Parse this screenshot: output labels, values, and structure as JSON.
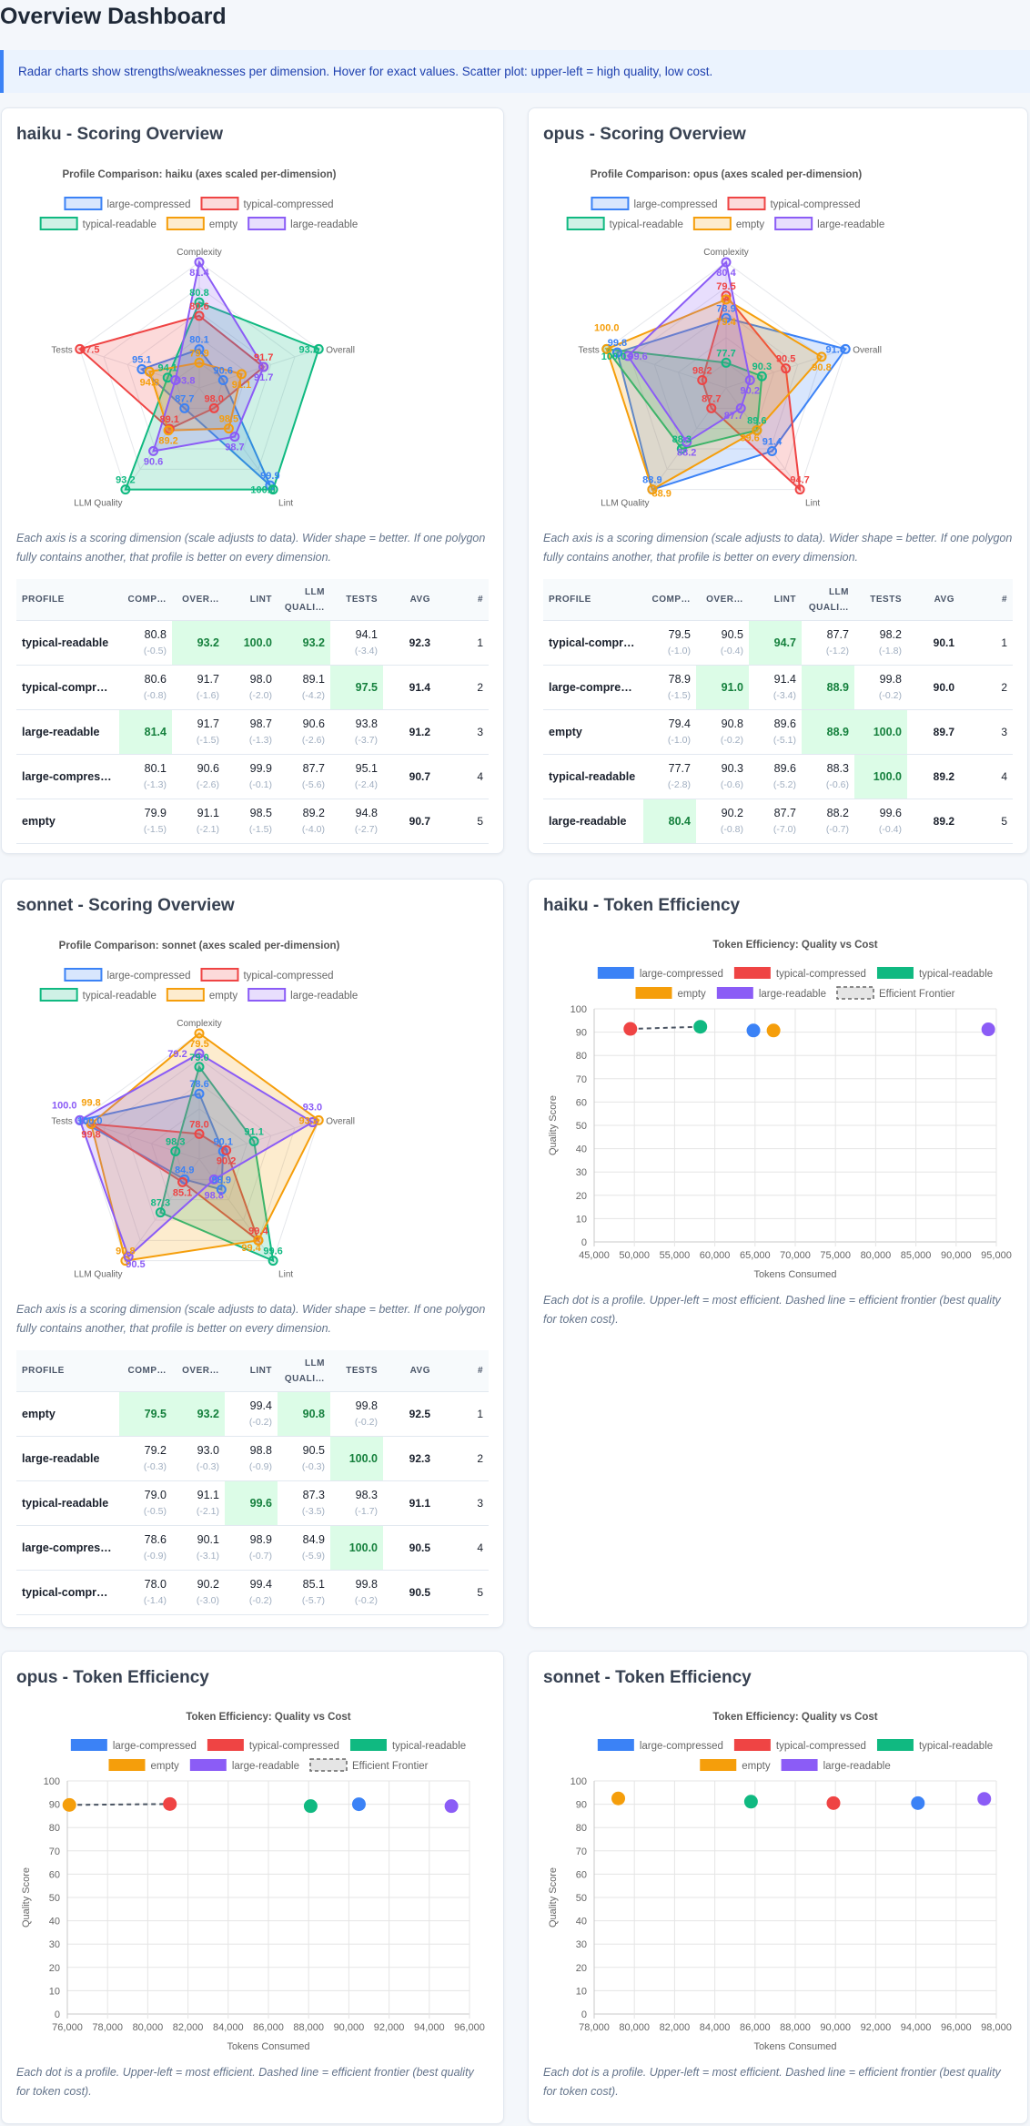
{
  "page": {
    "title": "Overview Dashboard",
    "banner": "Radar charts show strengths/weaknesses per dimension. Hover for exact values. Scatter plot: upper-left = high quality, low cost."
  },
  "colors": {
    "large-compressed": "#3b82f6",
    "typical-compressed": "#ef4444",
    "typical-readable": "#10b981",
    "empty": "#f59e0b",
    "large-readable": "#8b5cf6",
    "best_cell_bg": "#dcfce7",
    "best_cell_text": "#15803d",
    "accent": "#3b82f6"
  },
  "radar_cards": [
    {
      "title": "haiku - Scoring Overview",
      "caption": "Each axis is a scoring dimension (scale adjusts to data). Wider shape = better. If one polygon fully contains another, that profile is better on every dimension.",
      "table": {
        "headers": [
          "Profile",
          "Comp…",
          "Over…",
          "Lint",
          "LLM Quali…",
          "Tests",
          "Avg",
          "#"
        ],
        "rows": [
          {
            "profile": "typical-readable",
            "values": [
              "80.8",
              "93.2",
              "100.0",
              "93.2",
              "94.1"
            ],
            "deltas": [
              "(-0.5)",
              null,
              null,
              null,
              "(-3.4)"
            ],
            "avg": "92.3",
            "rank": "1"
          },
          {
            "profile": "typical-compressed",
            "values": [
              "80.6",
              "91.7",
              "98.0",
              "89.1",
              "97.5"
            ],
            "deltas": [
              "(-0.8)",
              "(-1.6)",
              "(-2.0)",
              "(-4.2)",
              null
            ],
            "avg": "91.4",
            "rank": "2"
          },
          {
            "profile": "large-readable",
            "values": [
              "81.4",
              "91.7",
              "98.7",
              "90.6",
              "93.8"
            ],
            "deltas": [
              null,
              "(-1.5)",
              "(-1.3)",
              "(-2.6)",
              "(-3.7)"
            ],
            "avg": "91.2",
            "rank": "3"
          },
          {
            "profile": "large-compressed",
            "values": [
              "80.1",
              "90.6",
              "99.9",
              "87.7",
              "95.1"
            ],
            "deltas": [
              "(-1.3)",
              "(-2.6)",
              "(-0.1)",
              "(-5.6)",
              "(-2.4)"
            ],
            "avg": "90.7",
            "rank": "4"
          },
          {
            "profile": "empty",
            "values": [
              "79.9",
              "91.1",
              "98.5",
              "89.2",
              "94.8"
            ],
            "deltas": [
              "(-1.5)",
              "(-2.1)",
              "(-1.5)",
              "(-4.0)",
              "(-2.7)"
            ],
            "avg": "90.7",
            "rank": "5"
          }
        ]
      }
    },
    {
      "title": "opus - Scoring Overview",
      "caption": "Each axis is a scoring dimension (scale adjusts to data). Wider shape = better. If one polygon fully contains another, that profile is better on every dimension.",
      "table": {
        "headers": [
          "Profile",
          "Comp…",
          "Over…",
          "Lint",
          "LLM Quali…",
          "Tests",
          "Avg",
          "#"
        ],
        "rows": [
          {
            "profile": "typical-compressed",
            "values": [
              "79.5",
              "90.5",
              "94.7",
              "87.7",
              "98.2"
            ],
            "deltas": [
              "(-1.0)",
              "(-0.4)",
              null,
              "(-1.2)",
              "(-1.8)"
            ],
            "avg": "90.1",
            "rank": "1"
          },
          {
            "profile": "large-compressed",
            "values": [
              "78.9",
              "91.0",
              "91.4",
              "88.9",
              "99.8"
            ],
            "deltas": [
              "(-1.5)",
              null,
              "(-3.4)",
              null,
              "(-0.2)"
            ],
            "avg": "90.0",
            "rank": "2"
          },
          {
            "profile": "empty",
            "values": [
              "79.4",
              "90.8",
              "89.6",
              "88.9",
              "100.0"
            ],
            "deltas": [
              "(-1.0)",
              "(-0.2)",
              "(-5.1)",
              null,
              null
            ],
            "avg": "89.7",
            "rank": "3"
          },
          {
            "profile": "typical-readable",
            "values": [
              "77.7",
              "90.3",
              "89.6",
              "88.3",
              "100.0"
            ],
            "deltas": [
              "(-2.8)",
              "(-0.6)",
              "(-5.2)",
              "(-0.6)",
              null
            ],
            "avg": "89.2",
            "rank": "4"
          },
          {
            "profile": "large-readable",
            "values": [
              "80.4",
              "90.2",
              "87.7",
              "88.2",
              "99.6"
            ],
            "deltas": [
              null,
              "(-0.8)",
              "(-7.0)",
              "(-0.7)",
              "(-0.4)"
            ],
            "avg": "89.2",
            "rank": "5"
          }
        ]
      }
    },
    {
      "title": "sonnet - Scoring Overview",
      "caption": "Each axis is a scoring dimension (scale adjusts to data). Wider shape = better. If one polygon fully contains another, that profile is better on every dimension.",
      "table": {
        "headers": [
          "Profile",
          "Comp…",
          "Over…",
          "Lint",
          "LLM Quali…",
          "Tests",
          "Avg",
          "#"
        ],
        "rows": [
          {
            "profile": "empty",
            "values": [
              "79.5",
              "93.2",
              "99.4",
              "90.8",
              "99.8"
            ],
            "deltas": [
              null,
              null,
              "(-0.2)",
              null,
              "(-0.2)"
            ],
            "avg": "92.5",
            "rank": "1"
          },
          {
            "profile": "large-readable",
            "values": [
              "79.2",
              "93.0",
              "98.8",
              "90.5",
              "100.0"
            ],
            "deltas": [
              "(-0.3)",
              "(-0.3)",
              "(-0.9)",
              "(-0.3)",
              null
            ],
            "avg": "92.3",
            "rank": "2"
          },
          {
            "profile": "typical-readable",
            "values": [
              "79.0",
              "91.1",
              "99.6",
              "87.3",
              "98.3"
            ],
            "deltas": [
              "(-0.5)",
              "(-2.1)",
              null,
              "(-3.5)",
              "(-1.7)"
            ],
            "avg": "91.1",
            "rank": "3"
          },
          {
            "profile": "large-compressed",
            "values": [
              "78.6",
              "90.1",
              "98.9",
              "84.9",
              "100.0"
            ],
            "deltas": [
              "(-0.9)",
              "(-3.1)",
              "(-0.7)",
              "(-5.9)",
              null
            ],
            "avg": "90.5",
            "rank": "4"
          },
          {
            "profile": "typical-compressed",
            "values": [
              "78.0",
              "90.2",
              "99.4",
              "85.1",
              "99.8"
            ],
            "deltas": [
              "(-1.4)",
              "(-3.0)",
              "(-0.2)",
              "(-5.7)",
              "(-0.2)"
            ],
            "avg": "90.5",
            "rank": "5"
          }
        ]
      }
    }
  ],
  "scatter_cards": [
    {
      "title": "haiku - Token Efficiency",
      "caption": "Each dot is a profile. Upper-left = most efficient. Dashed line = efficient frontier (best quality for token cost)."
    },
    {
      "title": "opus - Token Efficiency",
      "caption": "Each dot is a profile. Upper-left = most efficient. Dashed line = efficient frontier (best quality for token cost)."
    },
    {
      "title": "sonnet - Token Efficiency",
      "caption": "Each dot is a profile. Upper-left = most efficient. Dashed line = efficient frontier (best quality for token cost)."
    }
  ],
  "chart_data": [
    {
      "type": "radar",
      "title": "Profile Comparison: haiku  (axes scaled per-dimension)",
      "axes": [
        "Complexity",
        "Overall",
        "Lint",
        "LLM Quality",
        "Tests"
      ],
      "legend": "top",
      "series": [
        {
          "name": "large-compressed",
          "values": [
            80.1,
            90.6,
            99.9,
            87.7,
            95.1
          ]
        },
        {
          "name": "typical-compressed",
          "values": [
            80.6,
            91.7,
            98.0,
            89.1,
            97.5
          ]
        },
        {
          "name": "typical-readable",
          "values": [
            80.8,
            93.2,
            100.0,
            93.2,
            94.1
          ]
        },
        {
          "name": "empty",
          "values": [
            79.9,
            91.1,
            98.5,
            89.2,
            94.8
          ]
        },
        {
          "name": "large-readable",
          "values": [
            81.4,
            91.7,
            98.7,
            90.6,
            93.8
          ]
        }
      ]
    },
    {
      "type": "radar",
      "title": "Profile Comparison: opus  (axes scaled per-dimension)",
      "axes": [
        "Complexity",
        "Overall",
        "Lint",
        "LLM Quality",
        "Tests"
      ],
      "legend": "top",
      "series": [
        {
          "name": "large-compressed",
          "values": [
            78.9,
            91.0,
            91.4,
            88.9,
            99.8
          ]
        },
        {
          "name": "typical-compressed",
          "values": [
            79.5,
            90.5,
            94.7,
            87.7,
            98.2
          ]
        },
        {
          "name": "typical-readable",
          "values": [
            77.7,
            90.3,
            89.6,
            88.3,
            100.0
          ]
        },
        {
          "name": "empty",
          "values": [
            79.4,
            90.8,
            89.6,
            88.9,
            100.0
          ]
        },
        {
          "name": "large-readable",
          "values": [
            80.4,
            90.2,
            87.7,
            88.2,
            99.6
          ]
        }
      ]
    },
    {
      "type": "radar",
      "title": "Profile Comparison: sonnet  (axes scaled per-dimension)",
      "axes": [
        "Complexity",
        "Overall",
        "Lint",
        "LLM Quality",
        "Tests"
      ],
      "legend": "top",
      "series": [
        {
          "name": "large-compressed",
          "values": [
            78.6,
            90.1,
            98.9,
            84.9,
            100.0
          ]
        },
        {
          "name": "typical-compressed",
          "values": [
            78.0,
            90.2,
            99.4,
            85.1,
            99.8
          ]
        },
        {
          "name": "typical-readable",
          "values": [
            79.0,
            91.1,
            99.6,
            87.3,
            98.3
          ]
        },
        {
          "name": "empty",
          "values": [
            79.5,
            93.2,
            99.4,
            90.8,
            99.8
          ]
        },
        {
          "name": "large-readable",
          "values": [
            79.2,
            93.0,
            98.8,
            90.5,
            100.0
          ]
        }
      ]
    },
    {
      "type": "scatter",
      "title": "Token Efficiency: Quality vs Cost",
      "xlabel": "Tokens Consumed",
      "ylabel": "Quality Score",
      "xlim": [
        45000,
        95000
      ],
      "xstep": 5000,
      "ylim": [
        0,
        100
      ],
      "ystep": 10,
      "grid": true,
      "legend": "top",
      "series": [
        {
          "name": "large-compressed",
          "x": 64800,
          "y": 90.7
        },
        {
          "name": "typical-compressed",
          "x": 49500,
          "y": 91.4
        },
        {
          "name": "typical-readable",
          "x": 58200,
          "y": 92.3
        },
        {
          "name": "empty",
          "x": 67300,
          "y": 90.7
        },
        {
          "name": "large-readable",
          "x": 94000,
          "y": 91.2
        }
      ],
      "frontier": {
        "name": "Efficient Frontier",
        "profiles": [
          "typical-compressed",
          "typical-readable"
        ]
      }
    },
    {
      "type": "scatter",
      "title": "Token Efficiency: Quality vs Cost",
      "xlabel": "Tokens Consumed",
      "ylabel": "Quality Score",
      "xlim": [
        76000,
        96000
      ],
      "xstep": 2000,
      "ylim": [
        0,
        100
      ],
      "ystep": 10,
      "grid": true,
      "legend": "top",
      "series": [
        {
          "name": "large-compressed",
          "x": 90500,
          "y": 90.0
        },
        {
          "name": "typical-compressed",
          "x": 81100,
          "y": 90.1
        },
        {
          "name": "typical-readable",
          "x": 88100,
          "y": 89.2
        },
        {
          "name": "empty",
          "x": 76100,
          "y": 89.7
        },
        {
          "name": "large-readable",
          "x": 95100,
          "y": 89.2
        }
      ],
      "frontier": {
        "name": "Efficient Frontier",
        "profiles": [
          "empty",
          "typical-compressed"
        ]
      }
    },
    {
      "type": "scatter",
      "title": "Token Efficiency: Quality vs Cost",
      "xlabel": "Tokens Consumed",
      "ylabel": "Quality Score",
      "xlim": [
        78000,
        98000
      ],
      "xstep": 2000,
      "ylim": [
        0,
        100
      ],
      "ystep": 10,
      "grid": true,
      "legend": "top",
      "series": [
        {
          "name": "large-compressed",
          "x": 94100,
          "y": 90.5
        },
        {
          "name": "typical-compressed",
          "x": 89900,
          "y": 90.5
        },
        {
          "name": "typical-readable",
          "x": 85800,
          "y": 91.1
        },
        {
          "name": "empty",
          "x": 79200,
          "y": 92.5
        },
        {
          "name": "large-readable",
          "x": 97400,
          "y": 92.3
        }
      ],
      "frontier": null
    }
  ]
}
